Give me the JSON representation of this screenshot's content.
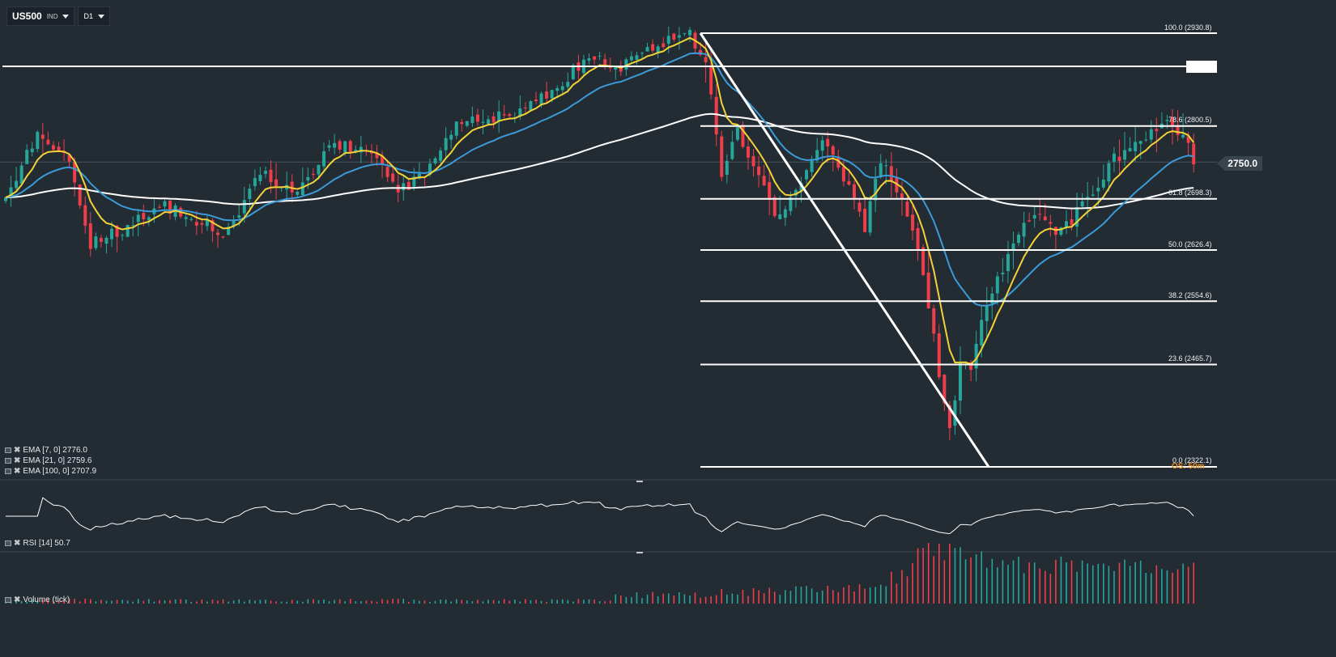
{
  "toolbar": {
    "symbol": "US500",
    "symbol_type": "IND",
    "timeframe": "D1"
  },
  "price_axis": {
    "current_price": "2750.0"
  },
  "fibonacci": {
    "levels": [
      {
        "ratio": 100.0,
        "price": 2930.8,
        "label": "100.0 (2930.8)"
      },
      {
        "ratio": 78.6,
        "price": 2800.5,
        "label": "78.6 (2800.5)"
      },
      {
        "ratio": 61.8,
        "price": 2698.3,
        "label": "61.8 (2698.3)"
      },
      {
        "ratio": 50.0,
        "price": 2626.4,
        "label": "50.0 (2626.4)"
      },
      {
        "ratio": 38.2,
        "price": 2554.6,
        "label": "38.2 (2554.6)"
      },
      {
        "ratio": 23.6,
        "price": 2465.7,
        "label": "23.6 (2465.7)"
      },
      {
        "ratio": 0.0,
        "price": 2322.1,
        "label": "0.0 (2322.1)"
      }
    ],
    "overlap_text": "OS: 50m"
  },
  "indicators": {
    "ema7": {
      "label": "EMA  [7,  0]  2776.0",
      "color": "#f2d236"
    },
    "ema21": {
      "label": "EMA  [21,  0]  2759.6",
      "color": "#3b9bd8"
    },
    "ema100": {
      "label": "EMA  [100,  0]  2707.9",
      "color": "#ffffff"
    },
    "rsi": {
      "label": "RSI  [14]  50.7"
    },
    "volume": {
      "label": "Volume  (tick)"
    }
  },
  "colors": {
    "background": "#232b33",
    "bull_candle": "#26a69a",
    "bear_candle": "#ef3e4a"
  },
  "chart_data": {
    "type": "candlestick",
    "anchors": [
      {
        "i": 0,
        "p": 2700
      },
      {
        "i": 6,
        "p": 2790
      },
      {
        "i": 12,
        "p": 2750
      },
      {
        "i": 16,
        "p": 2635
      },
      {
        "i": 22,
        "p": 2655
      },
      {
        "i": 30,
        "p": 2690
      },
      {
        "i": 37,
        "p": 2665
      },
      {
        "i": 41,
        "p": 2645
      },
      {
        "i": 48,
        "p": 2735
      },
      {
        "i": 55,
        "p": 2702
      },
      {
        "i": 62,
        "p": 2778
      },
      {
        "i": 69,
        "p": 2758
      },
      {
        "i": 74,
        "p": 2710
      },
      {
        "i": 78,
        "p": 2725
      },
      {
        "i": 85,
        "p": 2800
      },
      {
        "i": 91,
        "p": 2810
      },
      {
        "i": 97,
        "p": 2818
      },
      {
        "i": 104,
        "p": 2855
      },
      {
        "i": 110,
        "p": 2900
      },
      {
        "i": 116,
        "p": 2885
      },
      {
        "i": 121,
        "p": 2905
      },
      {
        "i": 126,
        "p": 2925
      },
      {
        "i": 129,
        "p": 2930
      },
      {
        "i": 132,
        "p": 2890
      },
      {
        "i": 135,
        "p": 2735
      },
      {
        "i": 138,
        "p": 2790
      },
      {
        "i": 142,
        "p": 2740
      },
      {
        "i": 145,
        "p": 2670
      },
      {
        "i": 150,
        "p": 2720
      },
      {
        "i": 154,
        "p": 2785
      },
      {
        "i": 158,
        "p": 2730
      },
      {
        "i": 162,
        "p": 2660
      },
      {
        "i": 165,
        "p": 2755
      },
      {
        "i": 169,
        "p": 2700
      },
      {
        "i": 173,
        "p": 2600
      },
      {
        "i": 176,
        "p": 2450
      },
      {
        "i": 178,
        "p": 2370
      },
      {
        "i": 180,
        "p": 2470
      },
      {
        "i": 182,
        "p": 2465
      },
      {
        "i": 184,
        "p": 2535
      },
      {
        "i": 189,
        "p": 2620
      },
      {
        "i": 194,
        "p": 2680
      },
      {
        "i": 199,
        "p": 2650
      },
      {
        "i": 204,
        "p": 2700
      },
      {
        "i": 209,
        "p": 2755
      },
      {
        "i": 214,
        "p": 2775
      },
      {
        "i": 219,
        "p": 2805
      },
      {
        "i": 222,
        "p": 2790
      },
      {
        "i": 224,
        "p": 2750
      }
    ],
    "candle_count": 225,
    "seed": 20181204
  }
}
